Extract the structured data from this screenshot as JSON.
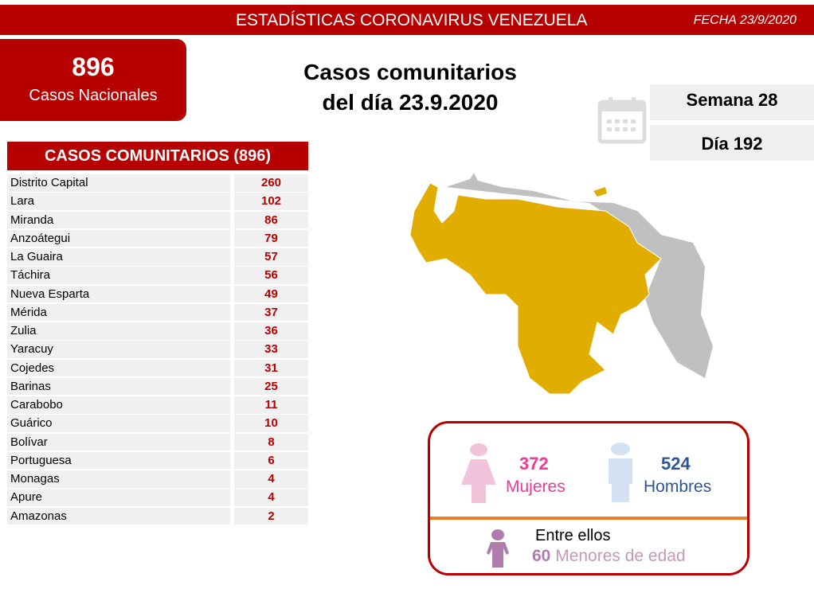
{
  "header": {
    "title": "ESTADÍSTICAS CORONAVIRUS VENEZUELA",
    "date": "FECHA 23/9/2020"
  },
  "national": {
    "count": "896",
    "label": "Casos Nacionales"
  },
  "main_title": {
    "line1": "Casos comunitarios",
    "line2": "del día 23.9.2020"
  },
  "week": "Semana 28",
  "day": "Día 192",
  "table": {
    "title": "CASOS COMUNITARIOS (896)",
    "rows": [
      {
        "name": "Distrito Capital",
        "value": "260"
      },
      {
        "name": "Lara",
        "value": "102"
      },
      {
        "name": "Miranda",
        "value": "86"
      },
      {
        "name": "Anzoátegui",
        "value": "79"
      },
      {
        "name": "La Guaira",
        "value": "57"
      },
      {
        "name": "Táchira",
        "value": "56"
      },
      {
        "name": "Nueva Esparta",
        "value": "49"
      },
      {
        "name": "Mérida",
        "value": "37"
      },
      {
        "name": "Zulia",
        "value": "36"
      },
      {
        "name": "Yaracuy",
        "value": "33"
      },
      {
        "name": "Cojedes",
        "value": "31"
      },
      {
        "name": "Barinas",
        "value": "25"
      },
      {
        "name": "Carabobo",
        "value": "11"
      },
      {
        "name": "Guárico",
        "value": "10"
      },
      {
        "name": "Bolívar",
        "value": "8"
      },
      {
        "name": "Portuguesa",
        "value": "6"
      },
      {
        "name": "Monagas",
        "value": "4"
      },
      {
        "name": "Apure",
        "value": "4"
      },
      {
        "name": "Amazonas",
        "value": "2"
      }
    ]
  },
  "gender": {
    "women_count": "372",
    "women_label": "Mujeres",
    "men_count": "524",
    "men_label": "Hombres",
    "among": "Entre ellos",
    "minors_count": "60",
    "minors_label": "Menores de edad"
  },
  "colors": {
    "brand": "#b70000",
    "map_affected": "#e0ad00",
    "map_unaffected": "#c0c0c0",
    "women": "#ec3a96",
    "men": "#2f5597",
    "minors": "#b07cae"
  }
}
